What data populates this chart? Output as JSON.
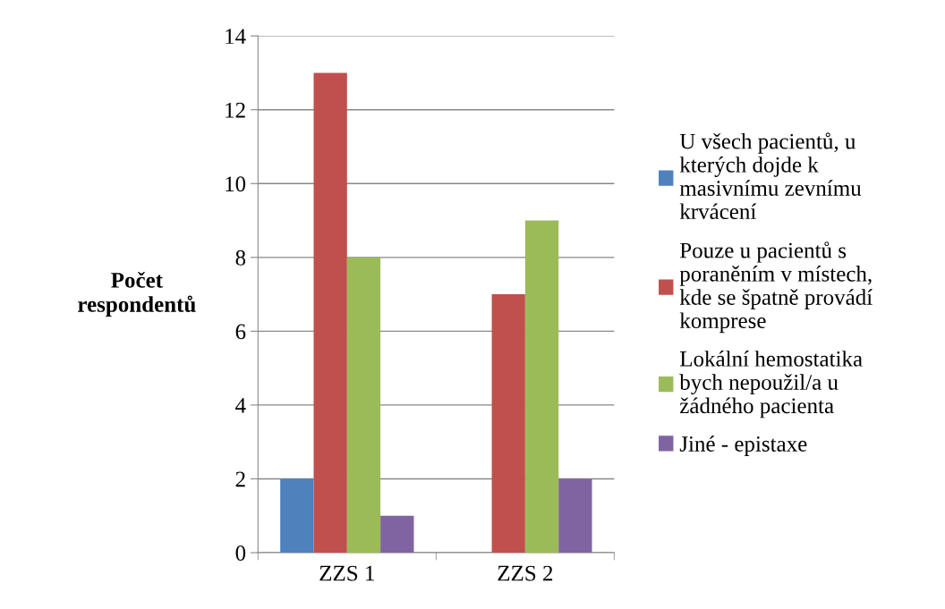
{
  "chart_data": {
    "type": "bar",
    "ylabel": "Počet respondentů",
    "categories": [
      "ZZS 1",
      "ZZS 2"
    ],
    "series": [
      {
        "name": "U všech pacientů, u kterých dojde k masivnímu zevnímu krvácení",
        "color": "#4f81bd",
        "values": [
          2,
          0
        ]
      },
      {
        "name": "Pouze u pacientů s poraněním v místech, kde se špatně provádí komprese",
        "color": "#c0504d",
        "values": [
          13,
          7
        ]
      },
      {
        "name": "Lokální hemostatika bych nepoužil/a u žádného pacienta",
        "color": "#9bbb59",
        "values": [
          8,
          9
        ]
      },
      {
        "name": "Jiné - epistaxe",
        "color": "#8064a2",
        "values": [
          1,
          2
        ]
      }
    ],
    "ylim": [
      0,
      14
    ],
    "yticks": [
      0,
      2,
      4,
      6,
      8,
      10,
      12,
      14
    ],
    "grid": "y",
    "legend": "right"
  }
}
